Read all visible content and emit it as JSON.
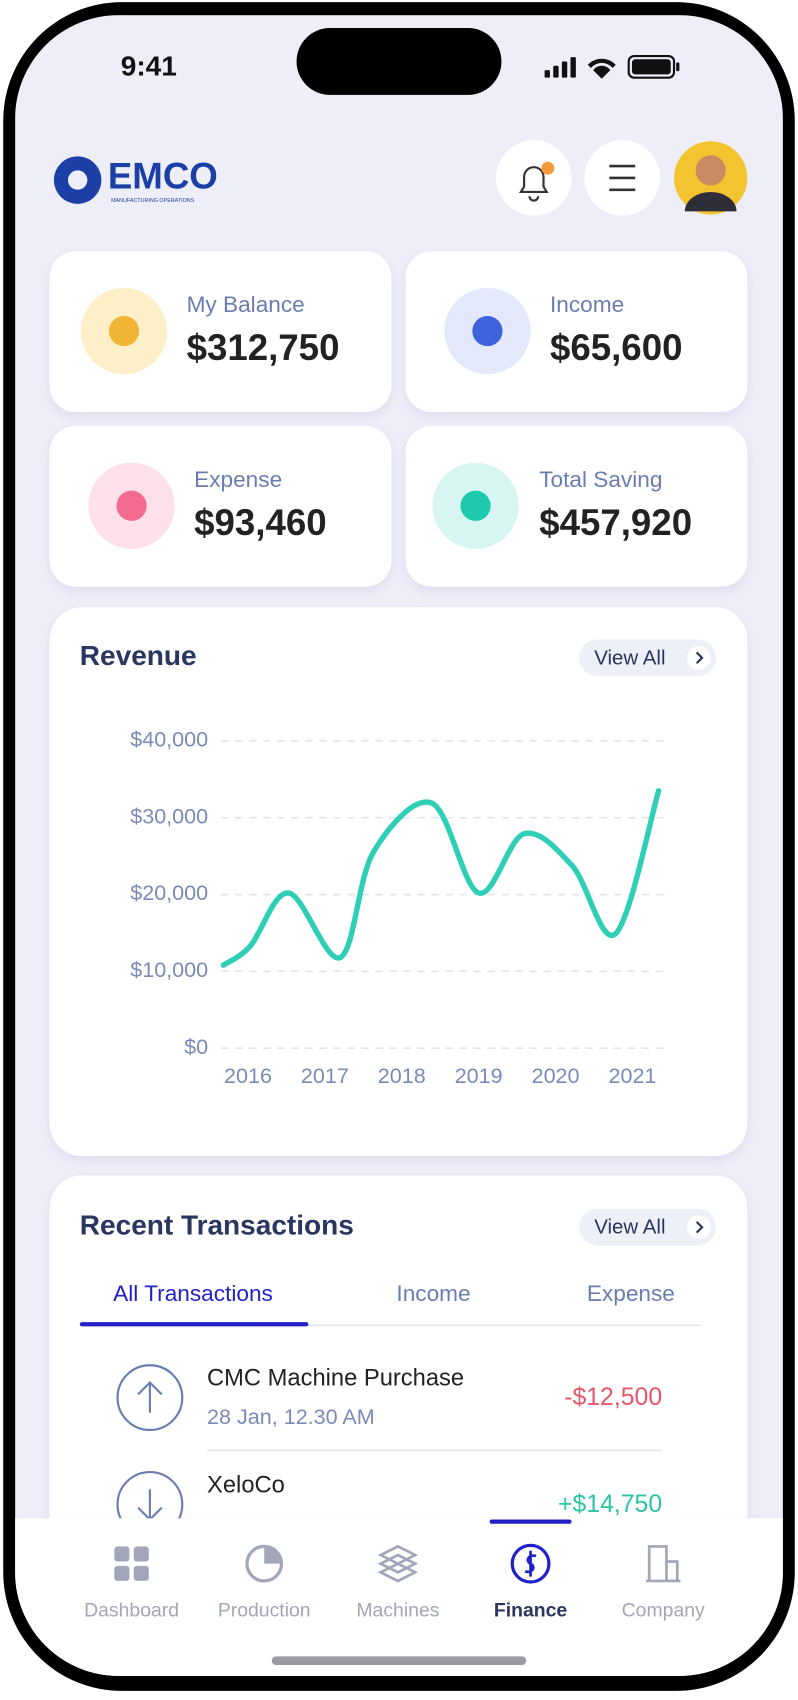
{
  "status_bar": {
    "time": "9:41"
  },
  "header": {
    "logo": "EMCO",
    "tagline": "MANUFACTURING OPERATIONS"
  },
  "stats": [
    {
      "label": "My Balance",
      "value": "$312,750"
    },
    {
      "label": "Income",
      "value": "$65,600"
    },
    {
      "label": "Expense",
      "value": "$93,460"
    },
    {
      "label": "Total Saving",
      "value": "$457,920"
    }
  ],
  "revenue_view_all": "View All",
  "chart_data": {
    "type": "line",
    "title": "Revenue",
    "series": [
      {
        "name": "Revenue",
        "color": "#2ecfb6",
        "x": [
          2015.68,
          2016.03,
          2016.53,
          2017.2,
          2017.63,
          2018.39,
          2019.0,
          2019.59,
          2020.22,
          2020.78,
          2021.34
        ],
        "values": [
          10800,
          13300,
          20200,
          11800,
          25500,
          31900,
          20200,
          27900,
          23700,
          14900,
          33500
        ]
      }
    ],
    "xlim": [
      2015.65,
      2021.4
    ],
    "xticks": [
      2016,
      2017,
      2018,
      2019,
      2020,
      2021
    ],
    "ylim": [
      0,
      40000
    ],
    "yticks": [
      {
        "value": 0,
        "label": "$0"
      },
      {
        "value": 10000,
        "label": "$10,000"
      },
      {
        "value": 20000,
        "label": "$20,000"
      },
      {
        "value": 30000,
        "label": "$30,000"
      },
      {
        "value": 40000,
        "label": "$40,000"
      }
    ],
    "grid": true
  },
  "transactions": {
    "title": "Recent Transactions",
    "view_all": "View All",
    "tabs": [
      "All Transactions",
      "Income",
      "Expense"
    ],
    "items": [
      {
        "name": "CMC Machine Purchase",
        "date": "28 Jan, 12.30 AM",
        "amount": "-$12,500"
      },
      {
        "name": "XeloCo",
        "amount": "+$14,750"
      }
    ]
  },
  "nav": [
    "Dashboard",
    "Production",
    "Machines",
    "Finance",
    "Company"
  ]
}
